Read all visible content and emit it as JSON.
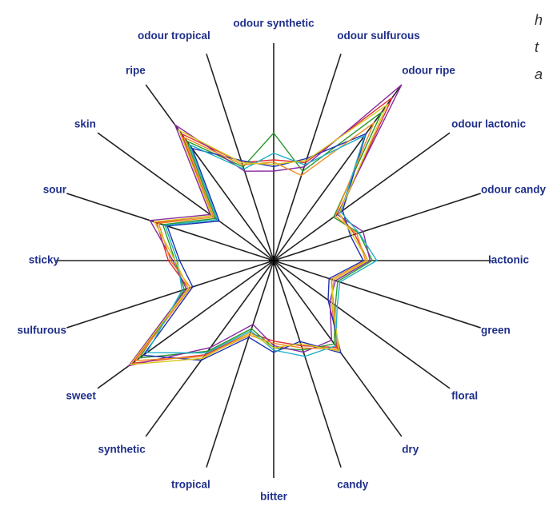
{
  "chart_data": {
    "type": "radar",
    "categories": [
      "odour synthetic",
      "odour sulfurous",
      "odour ripe",
      "odour lactonic",
      "odour candy",
      "lactonic",
      "green",
      "floral",
      "dry",
      "candy",
      "bitter",
      "tropical",
      "synthetic",
      "sweet",
      "sulfurous",
      "sticky",
      "sour",
      "skin",
      "ripe",
      "odour tropical"
    ],
    "rlim": [
      0,
      10
    ],
    "series": [
      {
        "color": "#e03030",
        "values": [
          4.5,
          4.6,
          9.0,
          3.6,
          3.8,
          4.2,
          2.8,
          3.2,
          4.8,
          4.0,
          3.6,
          3.4,
          5.2,
          7.8,
          4.0,
          4.7,
          5.5,
          3.4,
          7.0,
          4.6
        ]
      },
      {
        "color": "#2a9a2a",
        "values": [
          5.7,
          4.2,
          8.2,
          3.3,
          4.0,
          4.4,
          3.0,
          3.4,
          4.6,
          4.2,
          3.9,
          3.2,
          5.0,
          7.4,
          4.2,
          4.4,
          5.2,
          3.2,
          6.6,
          4.4
        ]
      },
      {
        "color": "#2030b0",
        "values": [
          4.2,
          4.8,
          7.0,
          3.8,
          3.6,
          4.0,
          2.6,
          3.0,
          5.1,
          3.8,
          4.1,
          3.6,
          5.5,
          7.2,
          3.8,
          4.2,
          5.0,
          3.0,
          6.2,
          4.7
        ]
      },
      {
        "color": "#8a2aa0",
        "values": [
          4.0,
          4.4,
          9.7,
          3.5,
          4.2,
          4.3,
          2.9,
          3.1,
          4.4,
          4.3,
          3.8,
          3.0,
          4.8,
          8.0,
          4.1,
          4.5,
          5.8,
          3.5,
          7.5,
          4.2
        ]
      },
      {
        "color": "#f08a20",
        "values": [
          4.4,
          4.0,
          7.6,
          3.4,
          3.9,
          4.1,
          2.7,
          3.3,
          4.9,
          4.1,
          3.7,
          3.5,
          5.3,
          7.6,
          3.9,
          4.6,
          5.4,
          3.3,
          6.8,
          4.5
        ]
      },
      {
        "color": "#20b0c8",
        "values": [
          4.8,
          4.5,
          6.9,
          3.7,
          4.0,
          4.6,
          3.1,
          3.5,
          4.7,
          4.5,
          4.0,
          3.3,
          5.1,
          7.0,
          4.3,
          4.3,
          5.1,
          3.1,
          6.4,
          4.3
        ]
      },
      {
        "color": "#d8c820",
        "values": [
          4.3,
          4.7,
          8.6,
          3.6,
          3.7,
          4.2,
          2.8,
          3.2,
          5.0,
          3.9,
          3.9,
          3.4,
          5.4,
          7.9,
          4.0,
          4.4,
          5.6,
          3.4,
          7.2,
          4.6
        ]
      }
    ]
  },
  "side_text": [
    "h",
    "t",
    "a"
  ]
}
